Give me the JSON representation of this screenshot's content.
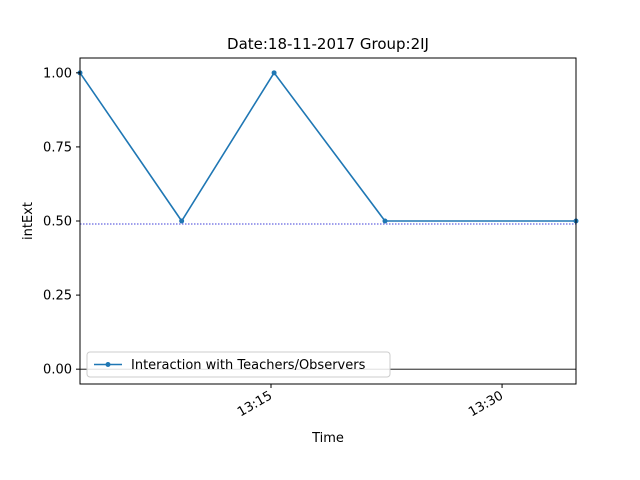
{
  "chart_data": {
    "type": "line",
    "title": "Date:18-11-2017  Group:2IJ",
    "xlabel": "Time",
    "ylabel": "intExt",
    "x_tick_labels": [
      {
        "time": "13:15",
        "label": "13:15"
      },
      {
        "time": "13:30",
        "label": "13:30"
      }
    ],
    "y_ticks": [
      0.0,
      0.25,
      0.5,
      0.75,
      1.0
    ],
    "y_tick_labels": [
      "0.00",
      "0.25",
      "0.50",
      "0.75",
      "1.00"
    ],
    "xlim": [
      "13:02.6",
      "13:34.8"
    ],
    "ylim": [
      -0.05,
      1.05
    ],
    "grid": false,
    "legend_position": "lower-left",
    "reference_lines": [
      {
        "y": 0.49,
        "style": "dotted",
        "color": "#0000cc"
      },
      {
        "y": 0.0,
        "style": "solid",
        "color": "#000000"
      }
    ],
    "series": [
      {
        "name": "Interaction with Teachers/Observers",
        "color": "#1f77b4",
        "marker": "circle",
        "points": [
          {
            "time": "13:02.6",
            "value": 1.0
          },
          {
            "time": "13:09.2",
            "value": 0.5
          },
          {
            "time": "13:15.2",
            "value": 1.0
          },
          {
            "time": "13:22.4",
            "value": 0.5
          },
          {
            "time": "13:34.8",
            "value": 0.5
          }
        ]
      }
    ]
  }
}
